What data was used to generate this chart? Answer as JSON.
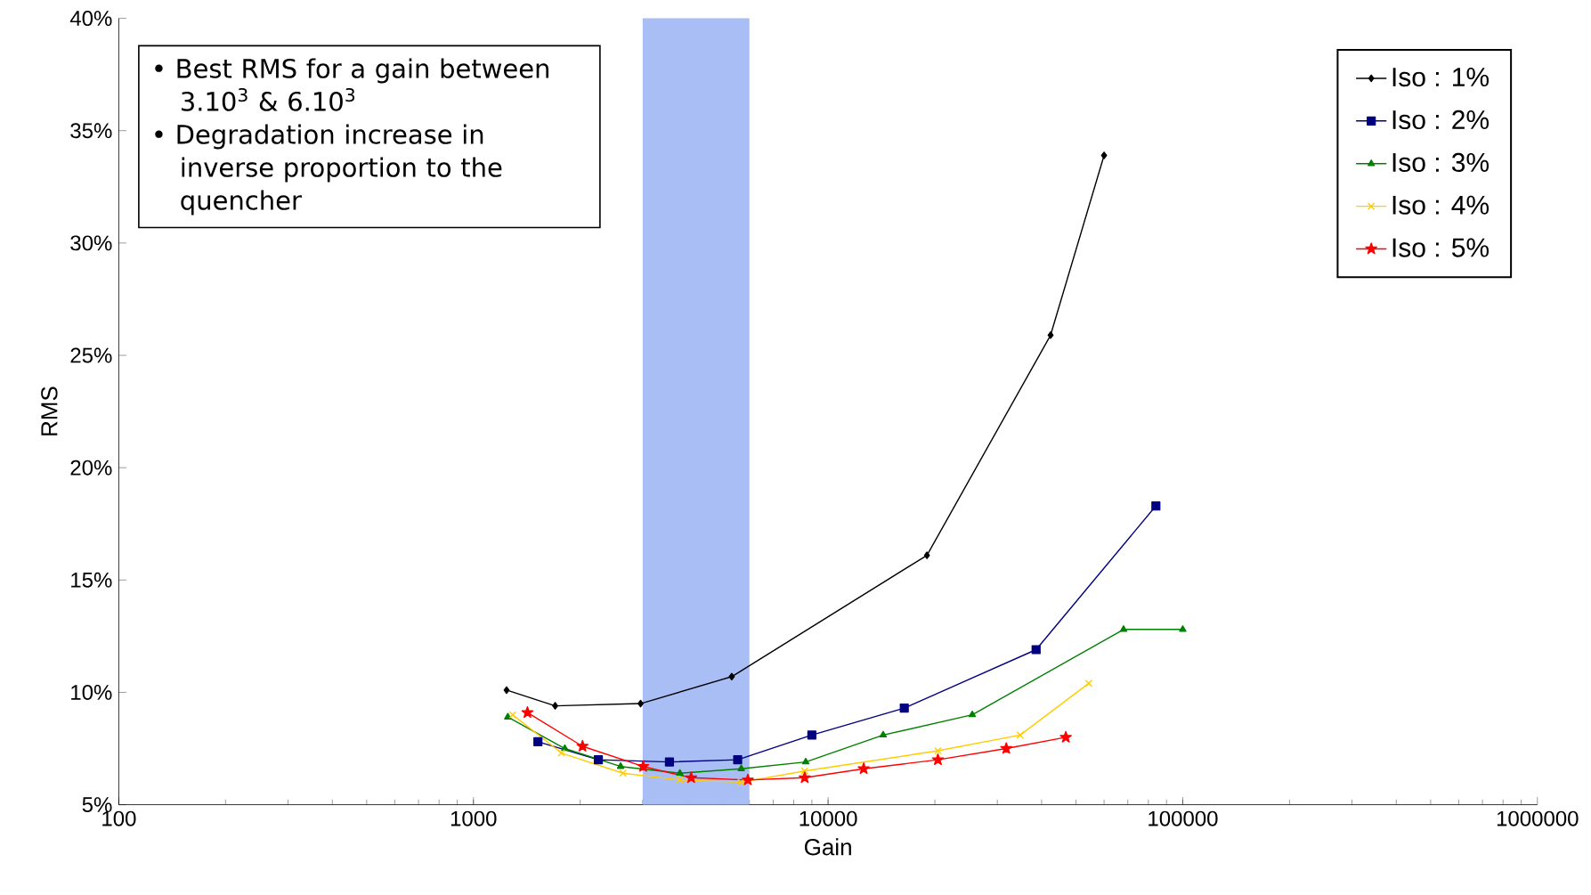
{
  "chart_data": {
    "type": "line",
    "xlabel": "Gain",
    "ylabel": "RMS",
    "log": "x",
    "xlim": [
      100,
      1000000
    ],
    "xticks": [
      100,
      1000,
      10000,
      100000,
      1000000
    ],
    "ylim": [
      5,
      40
    ],
    "yticks": [
      {
        "value": 5,
        "label": "5%"
      },
      {
        "value": 10,
        "label": "10%"
      },
      {
        "value": 15,
        "label": "15%"
      },
      {
        "value": 20,
        "label": "20%"
      },
      {
        "value": 25,
        "label": "25%"
      },
      {
        "value": 30,
        "label": "30%"
      },
      {
        "value": 35,
        "label": "35%"
      },
      {
        "value": 40,
        "label": "40%"
      }
    ],
    "grid": false,
    "legend": "top right",
    "bands": [
      {
        "axis": "x",
        "from": 3000,
        "to": 6000,
        "color": "#a9bef5"
      }
    ],
    "annotations": [
      "• Best RMS for a gain between 3.10$^{3}$ & 6.10$^{3}$",
      "• Degradation increase in inverse proportion to the quencher"
    ],
    "series": [
      {
        "name": "Iso : 1%",
        "color": "#000000",
        "marker": "diamond",
        "x": [
          1240,
          1700,
          2960,
          5350,
          19000,
          42400,
          60000
        ],
        "values": [
          10.1,
          9.4,
          9.5,
          10.7,
          16.1,
          25.9,
          33.9
        ]
      },
      {
        "name": "Iso : 2%",
        "color": "#000080",
        "marker": "square",
        "x": [
          1520,
          2250,
          3570,
          5560,
          9000,
          16400,
          38600,
          84000
        ],
        "values": [
          7.8,
          7.0,
          6.9,
          7.0,
          8.1,
          9.3,
          11.9,
          18.3
        ]
      },
      {
        "name": "Iso : 3%",
        "color": "#008000",
        "marker": "triangle",
        "x": [
          1250,
          1810,
          2600,
          3820,
          5690,
          8650,
          14300,
          25500,
          68100,
          100000
        ],
        "values": [
          8.9,
          7.5,
          6.7,
          6.4,
          6.6,
          6.9,
          8.1,
          9.0,
          12.8,
          12.8
        ]
      },
      {
        "name": "Iso : 4%",
        "color": "#ffcc00",
        "marker": "cross",
        "x": [
          1290,
          1770,
          2640,
          3820,
          5680,
          8590,
          20400,
          34800,
          54300
        ],
        "values": [
          9.0,
          7.3,
          6.4,
          6.1,
          6.0,
          6.5,
          7.4,
          8.1,
          10.4
        ]
      },
      {
        "name": "Iso : 5%",
        "color": "#ff0000",
        "marker": "star",
        "x": [
          1420,
          2030,
          3010,
          4110,
          5940,
          8590,
          12600,
          20400,
          31800,
          46800
        ],
        "values": [
          9.1,
          7.6,
          6.7,
          6.2,
          6.1,
          6.2,
          6.6,
          7.0,
          7.5,
          8.0
        ]
      }
    ]
  }
}
